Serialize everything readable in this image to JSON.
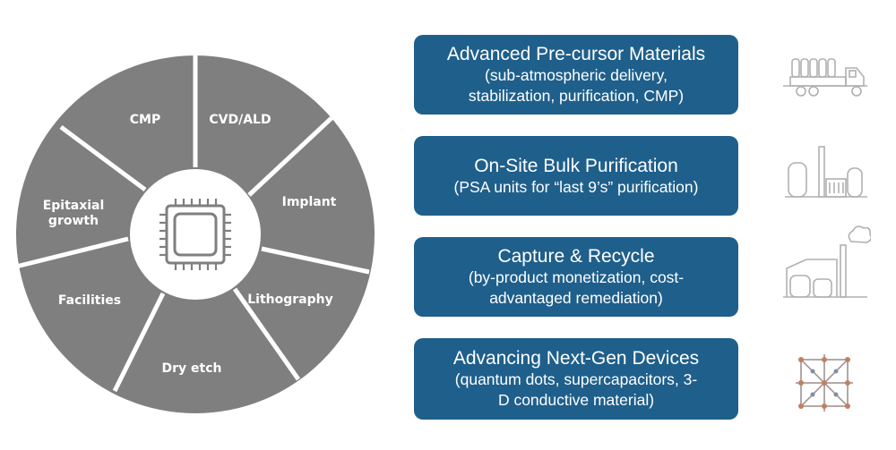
{
  "wheel": {
    "center_icon": "chip-icon",
    "segments": [
      "CMP",
      "CVD/ALD",
      "Implant",
      "Lithography",
      "Dry etch",
      "Facilities",
      "Epitaxial",
      "growth"
    ]
  },
  "boxes": [
    {
      "title": "Advanced Pre-cursor Materials",
      "line1": "(sub-atmospheric delivery,",
      "line2": "stabilization, purification, CMP)",
      "icon": "truck-icon"
    },
    {
      "title": "On-Site Bulk Purification",
      "line1": "(PSA units for “last 9’s” purification)",
      "line2": "",
      "icon": "plant-icon"
    },
    {
      "title": "Capture & Recycle",
      "line1": "(by-product monetization, cost-",
      "line2": "advantaged remediation)",
      "icon": "factory-smoke-icon"
    },
    {
      "title": "Advancing Next-Gen Devices",
      "line1": "(quantum dots, supercapacitors, 3-",
      "line2": "D conductive material)",
      "icon": "molecular-framework-icon"
    }
  ],
  "colors": {
    "wheel_fill": "#7f7f7f",
    "wheel_stroke": "#ffffff",
    "box_fill": "#1f5f8b",
    "icon_stroke": "#b0b0b0"
  }
}
